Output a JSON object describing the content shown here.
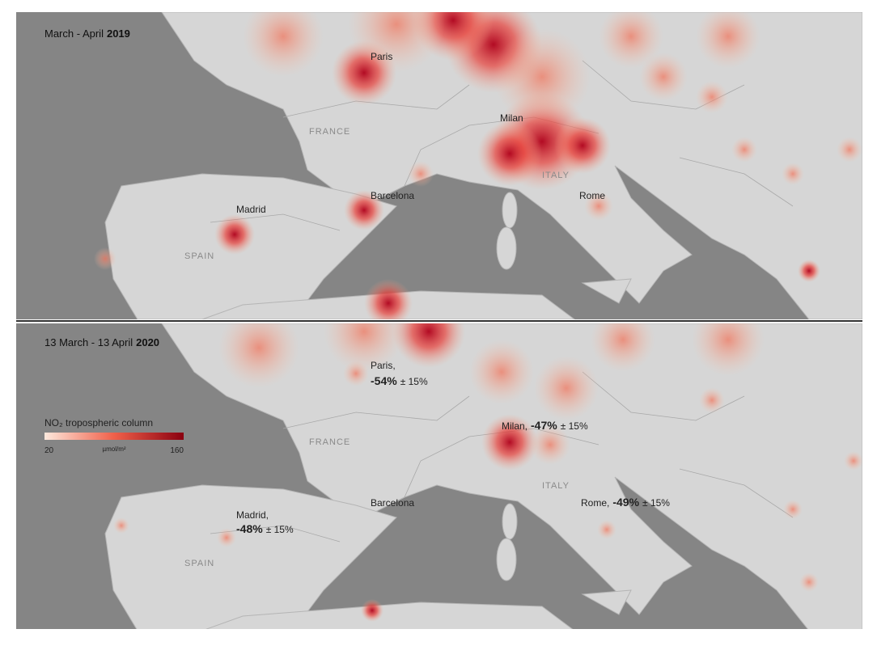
{
  "panels": [
    {
      "title": {
        "period": "March - April",
        "year": "2019"
      },
      "labels": {
        "paris": "Paris",
        "france": "FRANCE",
        "milan": "Milan",
        "italy": "ITALY",
        "barcelona": "Barcelona",
        "madrid": "Madrid",
        "rome": "Rome",
        "spain": "SPAIN"
      }
    },
    {
      "title": {
        "period": "13 March - 13 April",
        "year": "2020"
      },
      "labels": {
        "paris": "Paris,",
        "france": "FRANCE",
        "milan": "Milan,",
        "italy": "ITALY",
        "barcelona": "Barcelona",
        "madrid": "Madrid,",
        "rome": "Rome,",
        "spain": "SPAIN"
      },
      "changes": {
        "paris": {
          "change": "-54%",
          "uncertainty": "± 15%"
        },
        "milan": {
          "change": "-47%",
          "uncertainty": "± 15%"
        },
        "madrid": {
          "change": "-48%",
          "uncertainty": "± 15%"
        },
        "rome": {
          "change": "-49%",
          "uncertainty": "± 15%"
        }
      }
    }
  ],
  "legend": {
    "title": "NO₂ tropospheric column",
    "min": "20",
    "unit": "µmol/m²",
    "max": "160"
  }
}
